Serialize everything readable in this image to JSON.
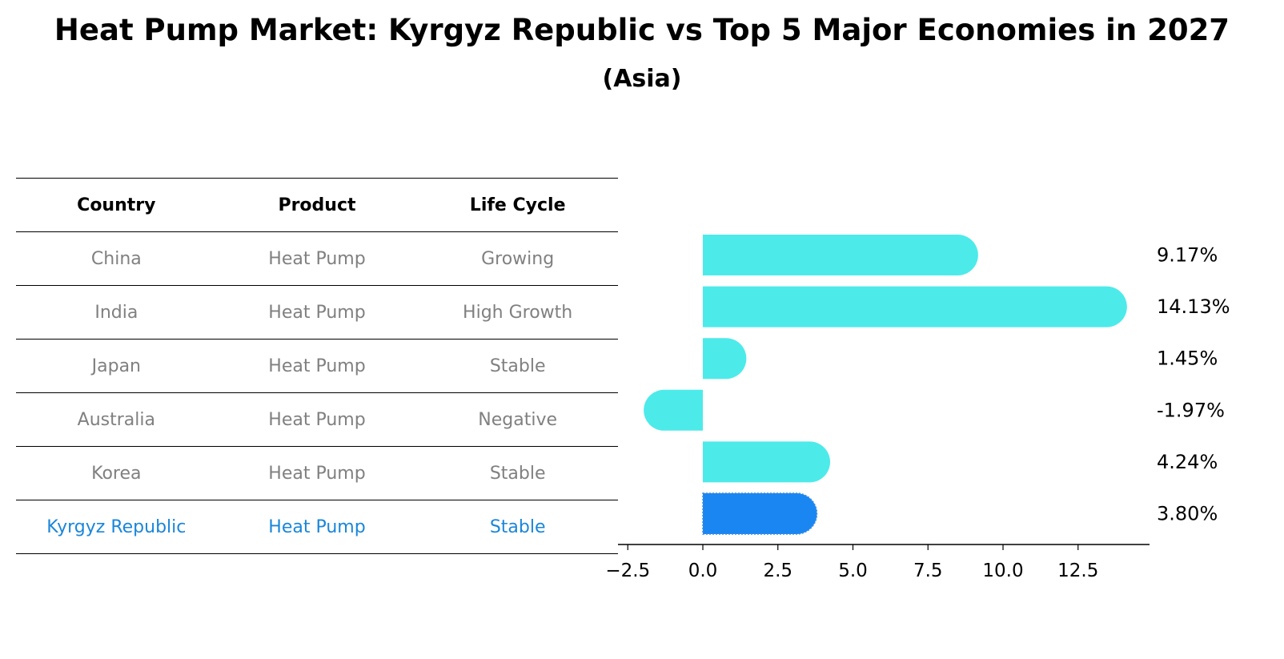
{
  "title": "Heat Pump Market: Kyrgyz Republic vs Top 5 Major Economies in 2027",
  "subtitle": "(Asia)",
  "table": {
    "headers": [
      "Country",
      "Product",
      "Life Cycle"
    ],
    "rows": [
      {
        "country": "China",
        "product": "Heat Pump",
        "life_cycle": "Growing"
      },
      {
        "country": "India",
        "product": "Heat Pump",
        "life_cycle": "High Growth"
      },
      {
        "country": "Japan",
        "product": "Heat Pump",
        "life_cycle": "Stable"
      },
      {
        "country": "Australia",
        "product": "Heat Pump",
        "life_cycle": "Negative"
      },
      {
        "country": "Korea",
        "product": "Heat Pump",
        "life_cycle": "Stable"
      },
      {
        "country": "Kyrgyz Republic",
        "product": "Heat Pump",
        "life_cycle": "Stable"
      }
    ]
  },
  "chart_data": {
    "type": "bar",
    "orientation": "horizontal",
    "categories": [
      "China",
      "India",
      "Japan",
      "Australia",
      "Korea",
      "Kyrgyz Republic"
    ],
    "values": [
      9.17,
      14.13,
      1.45,
      -1.97,
      4.24,
      3.8
    ],
    "value_labels": [
      "9.17%",
      "14.13%",
      "1.45%",
      "-1.97%",
      "4.24%",
      "3.80%"
    ],
    "xlim": [
      -2.5,
      15.0
    ],
    "xticks": [
      -2.5,
      0.0,
      2.5,
      5.0,
      7.5,
      10.0,
      12.5
    ],
    "xtick_labels": [
      "−2.5",
      "0.0",
      "2.5",
      "5.0",
      "7.5",
      "10.0",
      "12.5"
    ],
    "highlight_index": 5,
    "colors": {
      "default": "#4deaea",
      "highlight": "#1a86f2",
      "highlight_text": "#1a86da",
      "muted_text": "#808080"
    }
  }
}
